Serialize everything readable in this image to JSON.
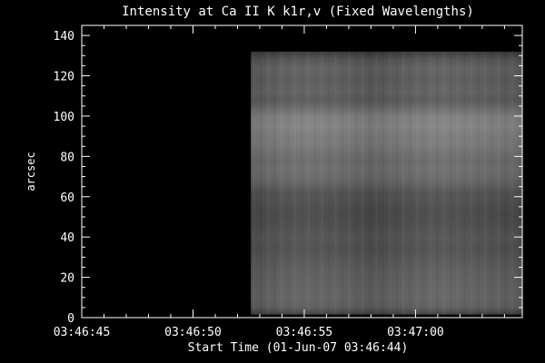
{
  "chart_data": {
    "type": "heatmap",
    "title": "Intensity at Ca II K k1r,v (Fixed Wavelengths)",
    "xlabel": "Start Time (01-Jun-07 03:46:44)",
    "ylabel": "arcsec",
    "x_ticks": [
      "03:46:45",
      "03:46:50",
      "03:46:55",
      "03:47:00"
    ],
    "x_tick_values_s": [
      1,
      6,
      11,
      16
    ],
    "xlim_s": [
      1,
      20.8
    ],
    "data_start_s": 8.6,
    "y_ticks": [
      0,
      20,
      40,
      60,
      80,
      100,
      120,
      140
    ],
    "ylim": [
      0,
      145
    ],
    "data_ylim": [
      1.5,
      132
    ],
    "background_color": "#000000",
    "axis_color": "#ffffff",
    "intensity_profile": [
      {
        "y": 132,
        "level": 55
      },
      {
        "y": 128,
        "level": 82
      },
      {
        "y": 124,
        "level": 95
      },
      {
        "y": 118,
        "level": 90
      },
      {
        "y": 112,
        "level": 95
      },
      {
        "y": 108,
        "level": 88
      },
      {
        "y": 105,
        "level": 100
      },
      {
        "y": 100,
        "level": 125
      },
      {
        "y": 95,
        "level": 130
      },
      {
        "y": 90,
        "level": 122
      },
      {
        "y": 86,
        "level": 120
      },
      {
        "y": 82,
        "level": 112
      },
      {
        "y": 78,
        "level": 105
      },
      {
        "y": 74,
        "level": 108
      },
      {
        "y": 70,
        "level": 105
      },
      {
        "y": 66,
        "level": 95
      },
      {
        "y": 62,
        "level": 80
      },
      {
        "y": 58,
        "level": 78
      },
      {
        "y": 52,
        "level": 72
      },
      {
        "y": 46,
        "level": 75
      },
      {
        "y": 40,
        "level": 82
      },
      {
        "y": 34,
        "level": 78
      },
      {
        "y": 28,
        "level": 86
      },
      {
        "y": 22,
        "level": 92
      },
      {
        "y": 16,
        "level": 95
      },
      {
        "y": 10,
        "level": 98
      },
      {
        "y": 5,
        "level": 92
      },
      {
        "y": 1.5,
        "level": 60
      }
    ]
  }
}
